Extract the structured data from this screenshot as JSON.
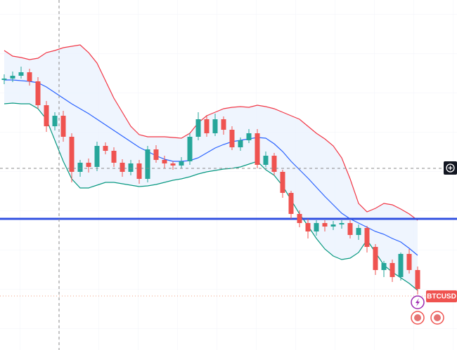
{
  "chart_data": {
    "type": "candlestick",
    "symbol": "BTCUSD",
    "open": [
      386,
      388,
      392,
      397,
      384,
      350,
      320,
      335,
      305,
      255,
      268,
      262,
      292,
      285,
      268,
      255,
      267,
      245,
      287,
      272,
      267,
      264,
      270,
      305,
      330,
      310,
      330,
      315,
      290,
      300,
      310,
      265,
      278,
      255,
      225,
      195,
      182,
      170,
      182,
      177,
      180,
      182,
      165,
      175,
      148,
      115,
      125,
      105,
      138,
      115
    ],
    "close": [
      388,
      392,
      397,
      384,
      350,
      320,
      335,
      305,
      255,
      268,
      262,
      292,
      285,
      268,
      255,
      267,
      245,
      287,
      272,
      267,
      264,
      270,
      305,
      330,
      310,
      330,
      315,
      290,
      300,
      310,
      265,
      278,
      255,
      225,
      195,
      182,
      170,
      182,
      177,
      180,
      182,
      165,
      175,
      148,
      115,
      125,
      105,
      138,
      115,
      88
    ],
    "high": [
      394,
      398,
      405,
      402,
      390,
      356,
      340,
      342,
      310,
      272,
      274,
      298,
      297,
      290,
      273,
      272,
      272,
      292,
      293,
      278,
      270,
      276,
      310,
      340,
      336,
      338,
      334,
      320,
      304,
      316,
      316,
      284,
      282,
      258,
      228,
      200,
      188,
      186,
      186,
      185,
      186,
      186,
      180,
      178,
      152,
      128,
      130,
      140,
      145,
      120
    ],
    "low": [
      380,
      383,
      388,
      378,
      345,
      312,
      314,
      298,
      240,
      248,
      254,
      256,
      280,
      262,
      248,
      250,
      238,
      240,
      268,
      260,
      258,
      260,
      265,
      300,
      305,
      306,
      308,
      286,
      285,
      296,
      260,
      262,
      250,
      218,
      188,
      176,
      160,
      164,
      170,
      172,
      174,
      160,
      158,
      140,
      108,
      105,
      98,
      100,
      110,
      80
    ],
    "up_color": "#26a69a",
    "down_color": "#ef5350",
    "bands": [
      {
        "color": "#f23645",
        "values": [
          428,
          420,
          418,
          415,
          417,
          425,
          428,
          432,
          434,
          436,
          425,
          410,
          385,
          360,
          340,
          320,
          308,
          305,
          305,
          305,
          304,
          303,
          310,
          325,
          335,
          340,
          345,
          347,
          348,
          347,
          350,
          348,
          345,
          340,
          335,
          330,
          320,
          310,
          302,
          292,
          275,
          245,
          210,
          198,
          203,
          210,
          208,
          202,
          195,
          186
        ]
      },
      {
        "color": "#2962ff",
        "values": [
          386,
          386,
          385,
          384,
          382,
          376,
          368,
          360,
          352,
          345,
          338,
          330,
          322,
          314,
          306,
          298,
          290,
          284,
          278,
          273,
          270,
          270,
          271,
          275,
          282,
          289,
          294,
          298,
          300,
          302,
          304,
          303,
          295,
          284,
          270,
          258,
          246,
          233,
          220,
          208,
          196,
          188,
          182,
          176,
          170,
          166,
          160,
          155,
          146,
          136
        ]
      },
      {
        "color": "#089981",
        "values": [
          352,
          353,
          352,
          352,
          345,
          330,
          300,
          270,
          245,
          232,
          232,
          236,
          240,
          240,
          238,
          236,
          234,
          235,
          237,
          240,
          243,
          245,
          248,
          252,
          255,
          257,
          259,
          260,
          262,
          266,
          270,
          258,
          250,
          235,
          215,
          195,
          178,
          160,
          145,
          135,
          130,
          132,
          140,
          158,
          140,
          122,
          112,
          104,
          96,
          86
        ]
      }
    ],
    "band_fill": "#e8f1fd",
    "levels": [
      {
        "value": 188,
        "color": "#3050e0"
      },
      {
        "value": 78,
        "color": "#f0a080"
      }
    ],
    "ylim": [
      0,
      500
    ]
  }
}
